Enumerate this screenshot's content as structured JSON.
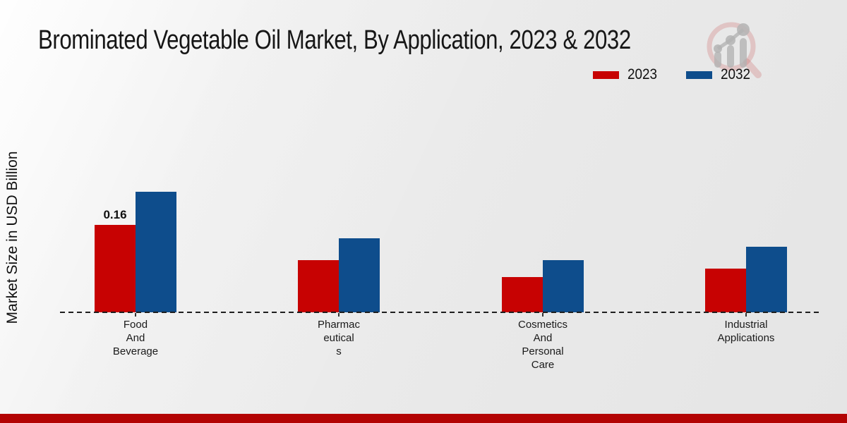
{
  "title": "Brominated Vegetable Oil Market, By Application, 2023 & 2032",
  "y_axis_label": "Market Size in USD Billion",
  "legend": {
    "items": [
      {
        "label": "2023",
        "color": "#c70202"
      },
      {
        "label": "2032",
        "color": "#0e4d8c"
      }
    ]
  },
  "icons": {
    "brand_logo": "magnifier-bar-chart-logo"
  },
  "colors": {
    "series_2023": "#c70202",
    "series_2032": "#0e4d8c",
    "footer_bar": "#b30303",
    "baseline": "#1e1e1e"
  },
  "footer": {
    "bar_color": "#b30303"
  },
  "chart_data": {
    "type": "bar",
    "title": "Brominated Vegetable Oil Market, By Application, 2023 & 2032",
    "xlabel": "",
    "ylabel": "Market Size in USD Billion",
    "categories": [
      "Food And Beverage",
      "Pharmaceuticals",
      "Cosmetics And Personal Care",
      "Industrial Applications"
    ],
    "category_display_lines": [
      [
        "Food",
        "And",
        "Beverage"
      ],
      [
        "Pharmac",
        "eutical",
        "s"
      ],
      [
        "Cosmetics",
        "And",
        "Personal",
        "Care"
      ],
      [
        "Industrial",
        "Applications"
      ]
    ],
    "series": [
      {
        "name": "2023",
        "color": "#c70202",
        "values": [
          0.16,
          0.095,
          0.065,
          0.08
        ]
      },
      {
        "name": "2032",
        "color": "#0e4d8c",
        "values": [
          0.22,
          0.135,
          0.095,
          0.12
        ]
      }
    ],
    "value_labels": [
      {
        "series_index": 0,
        "category_index": 0,
        "text": "0.16"
      }
    ],
    "ylim": [
      0,
      0.25
    ],
    "grid": false,
    "baseline_style": "dashed",
    "legend_position": "top-right"
  }
}
